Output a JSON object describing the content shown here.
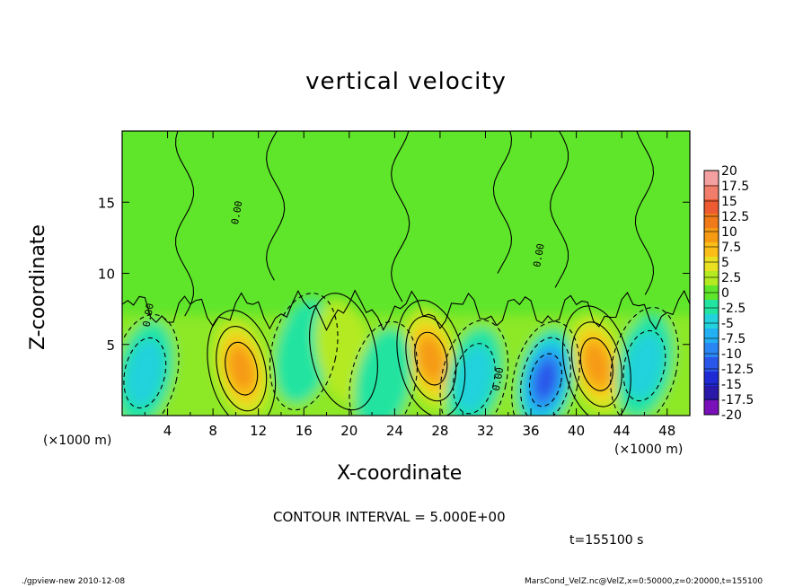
{
  "chart_data": {
    "type": "heatmap",
    "title": "vertical velocity",
    "xlabel": "X-coordinate",
    "ylabel": "Z-coordinate",
    "x_unit_label": "(×1000 m)",
    "x_ticks": [
      "4",
      "8",
      "12",
      "16",
      "20",
      "24",
      "28",
      "32",
      "36",
      "40",
      "44",
      "48"
    ],
    "y_ticks": [
      "5",
      "10",
      "15"
    ],
    "xlim": [
      0,
      50
    ],
    "ylim": [
      0,
      20
    ],
    "colorbar_labels": [
      "20",
      "17.5",
      "15",
      "12.5",
      "10",
      "7.5",
      "5",
      "2.5",
      "0",
      "-2.5",
      "-5",
      "-7.5",
      "-10",
      "-12.5",
      "-15",
      "-17.5",
      "-20"
    ],
    "colorbar_colors": [
      "#f5a0a0",
      "#f07e6a",
      "#ee5a32",
      "#f07a1a",
      "#f59a12",
      "#fbbe18",
      "#e8e020",
      "#b4ea22",
      "#5ee62a",
      "#22e4a0",
      "#22d2dc",
      "#22b0f2",
      "#2a86f2",
      "#2a56ea",
      "#1e2ad4",
      "#2a18a8",
      "#7a10ba"
    ],
    "contour_interval": "CONTOUR INTERVAL = 5.000E+00",
    "contour_labels": [
      "0.00",
      "0.00",
      "0.00",
      "0.00"
    ],
    "time": "t=155100 s",
    "features": [
      {
        "x": 10.5,
        "z": 3.3,
        "value": 12
      },
      {
        "x": 27.2,
        "z": 4.0,
        "value": 12
      },
      {
        "x": 41.8,
        "z": 3.6,
        "value": 10
      },
      {
        "x": 37.3,
        "z": 2.5,
        "value": -13
      },
      {
        "x": 31.0,
        "z": 2.6,
        "value": -7
      },
      {
        "x": 2.0,
        "z": 3.0,
        "value": -6
      },
      {
        "x": 16.0,
        "z": 4.5,
        "value": -4
      },
      {
        "x": 46.0,
        "z": 3.5,
        "value": -5
      },
      {
        "x": 19.5,
        "z": 4.5,
        "value": 4
      },
      {
        "x": 23.0,
        "z": 2.5,
        "value": -3
      }
    ]
  },
  "footer": {
    "left": "./gpview-new   2010-12-08",
    "right": "MarsCond_VelZ.nc@VelZ,x=0:50000,z=0:20000,t=155100"
  }
}
